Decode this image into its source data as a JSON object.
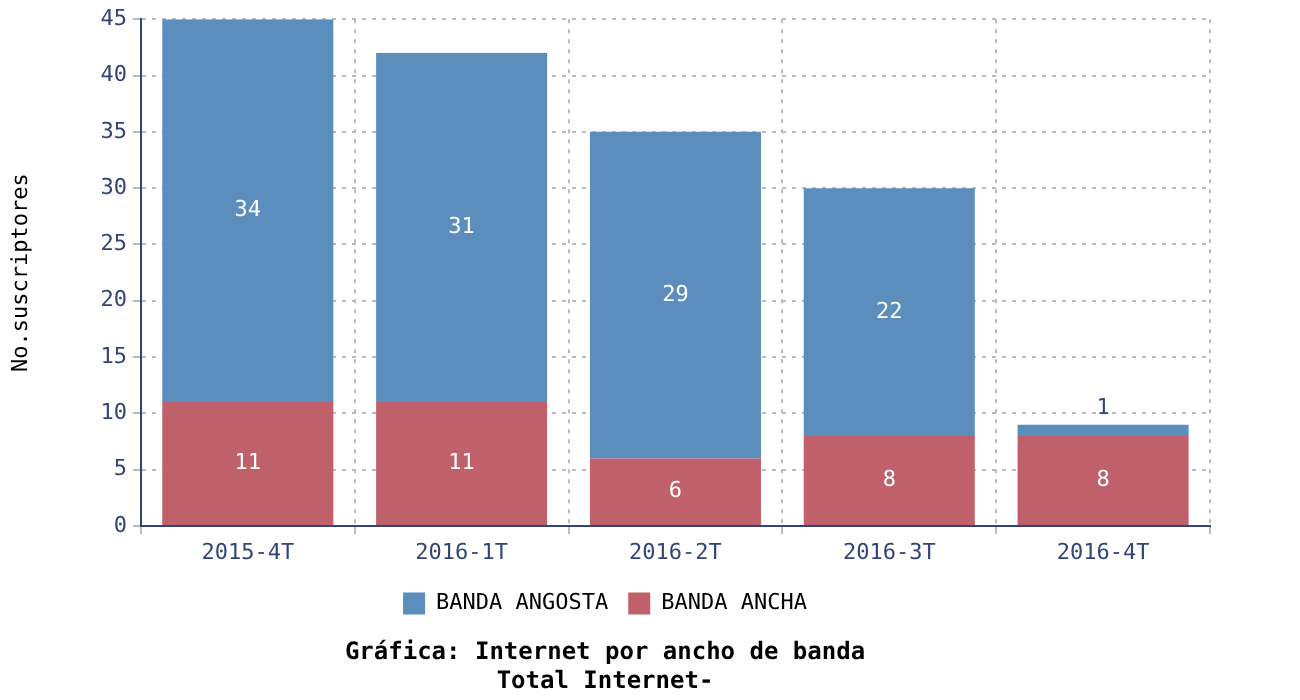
{
  "chart_data": {
    "type": "bar",
    "stacked": true,
    "title": "Gráfica: Internet por ancho de banda",
    "subtitle": "Total Internet-",
    "ylabel": "No.suscriptores",
    "categories": [
      "2015-4T",
      "2016-1T",
      "2016-2T",
      "2016-3T",
      "2016-4T"
    ],
    "series": [
      {
        "name": "BANDA ANCHA",
        "color": "#bf606a",
        "values": [
          11,
          11,
          6,
          8,
          8
        ]
      },
      {
        "name": "BANDA ANGOSTA",
        "color": "#5b8ebd",
        "values": [
          34,
          31,
          29,
          22,
          1
        ]
      }
    ],
    "ylim": [
      0,
      45
    ],
    "yticks": [
      0,
      5,
      10,
      15,
      20,
      25,
      30,
      35,
      40,
      45
    ],
    "grid": true,
    "legend": "bottom",
    "data_labels": true
  }
}
